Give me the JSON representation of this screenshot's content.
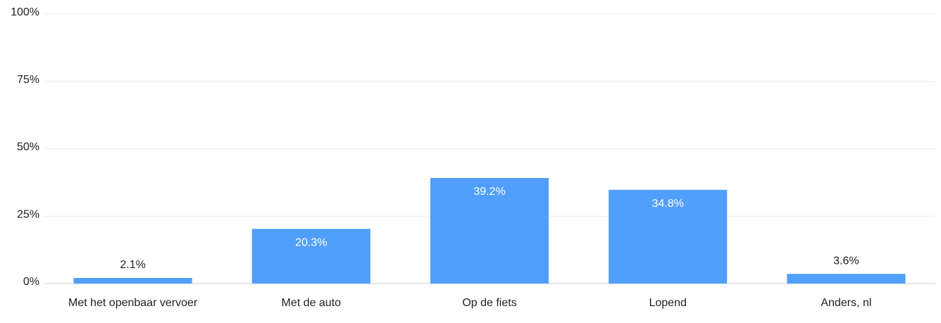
{
  "chart_data": {
    "type": "bar",
    "categories": [
      "Met het openbaar vervoer",
      "Met de auto",
      "Op de fiets",
      "Lopend",
      "Anders, nl"
    ],
    "values": [
      2.1,
      20.3,
      39.2,
      34.8,
      3.6
    ],
    "value_labels": [
      "2.1%",
      "20.3%",
      "39.2%",
      "34.8%",
      "3.6%"
    ],
    "color": "#519ffc",
    "ylim": [
      0,
      100
    ],
    "yticks": [
      {
        "value": 0,
        "label": "0%"
      },
      {
        "value": 25,
        "label": "25%"
      },
      {
        "value": 50,
        "label": "50%"
      },
      {
        "value": 75,
        "label": "75%"
      },
      {
        "value": 100,
        "label": "100%"
      }
    ],
    "grid": true
  }
}
